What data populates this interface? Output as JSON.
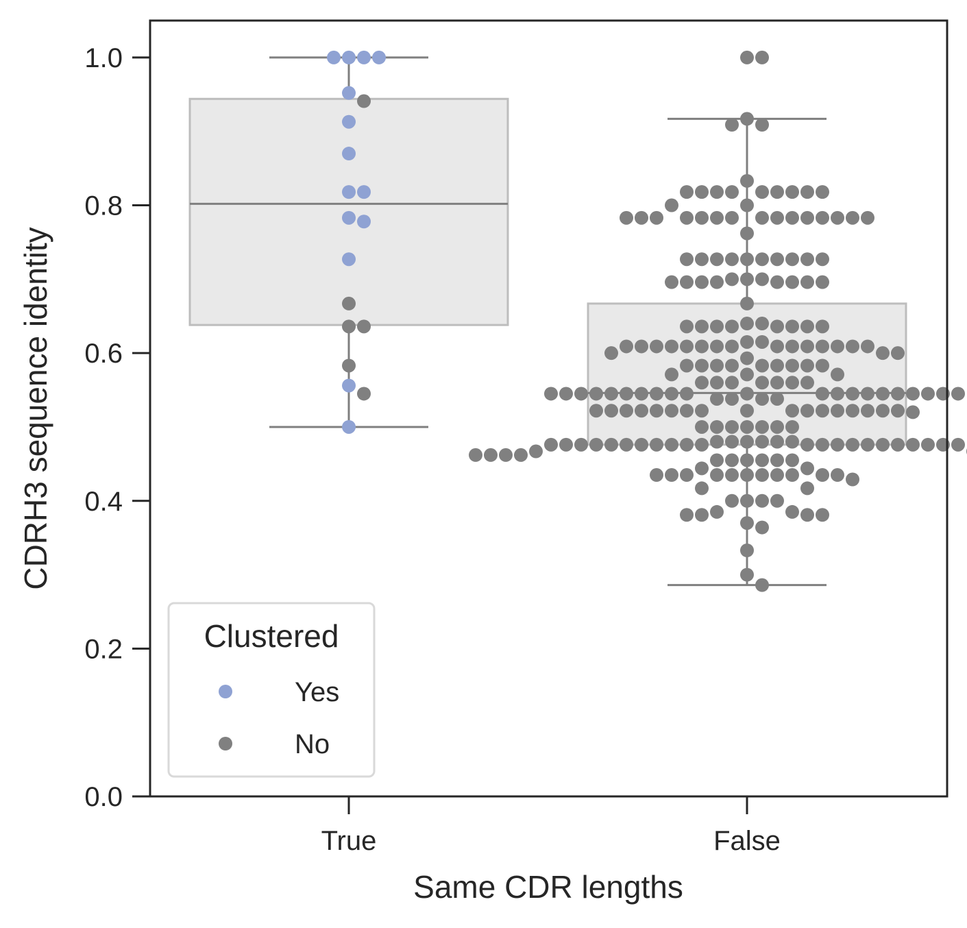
{
  "chart_data": {
    "type": "box-swarm",
    "xlabel": "Same CDR lengths",
    "ylabel": "CDRH3 sequence identity",
    "ylim": [
      0.0,
      1.05
    ],
    "yticks": [
      0.0,
      0.2,
      0.4,
      0.6,
      0.8,
      1.0
    ],
    "ytick_labels": [
      "0.0",
      "0.2",
      "0.4",
      "0.6",
      "0.8",
      "1.0"
    ],
    "categories": [
      "True",
      "False"
    ],
    "legend": {
      "title": "Clustered",
      "placement": "lower-left",
      "entries": [
        {
          "label": "Yes",
          "color": "#8fa2d3"
        },
        {
          "label": "No",
          "color": "#808080"
        }
      ]
    },
    "colors": {
      "box_fill": "#e9e9e9",
      "box_edge": "#bdbdbd",
      "whisker": "#7f7f7f",
      "axis": "#262626",
      "yes": "#8fa2d3",
      "no": "#808080"
    },
    "boxes": [
      {
        "category": "True",
        "q1": 0.638,
        "median": 0.802,
        "q3": 0.944,
        "whisker_low": 0.5,
        "whisker_high": 1.0
      },
      {
        "category": "False",
        "q1": 0.476,
        "median": 0.546,
        "q3": 0.667,
        "whisker_low": 0.286,
        "whisker_high": 0.917
      }
    ],
    "points": {
      "True": {
        "Yes": [
          1.0,
          1.0,
          1.0,
          1.0,
          0.952,
          0.913,
          0.87,
          0.818,
          0.818,
          0.783,
          0.778,
          0.727,
          0.556,
          0.5
        ],
        "No": [
          0.941,
          0.667,
          0.636,
          0.636,
          0.583,
          0.545
        ]
      },
      "False": {
        "Yes": [],
        "No": [
          1.0,
          1.0,
          0.917,
          0.909,
          0.909,
          0.833,
          0.818,
          0.818,
          0.818,
          0.818,
          0.818,
          0.818,
          0.818,
          0.818,
          0.818,
          0.8,
          0.8,
          0.783,
          0.783,
          0.783,
          0.783,
          0.783,
          0.783,
          0.783,
          0.783,
          0.783,
          0.783,
          0.783,
          0.783,
          0.783,
          0.783,
          0.783,
          0.762,
          0.727,
          0.727,
          0.727,
          0.727,
          0.727,
          0.727,
          0.727,
          0.727,
          0.727,
          0.727,
          0.7,
          0.7,
          0.7,
          0.696,
          0.696,
          0.696,
          0.696,
          0.696,
          0.696,
          0.696,
          0.696,
          0.667,
          0.64,
          0.64,
          0.636,
          0.636,
          0.636,
          0.636,
          0.636,
          0.636,
          0.636,
          0.636,
          0.615,
          0.615,
          0.609,
          0.609,
          0.609,
          0.609,
          0.609,
          0.609,
          0.609,
          0.609,
          0.609,
          0.609,
          0.609,
          0.609,
          0.609,
          0.609,
          0.609,
          0.6,
          0.6,
          0.6,
          0.593,
          0.583,
          0.583,
          0.583,
          0.583,
          0.583,
          0.583,
          0.583,
          0.583,
          0.583,
          0.571,
          0.571,
          0.571,
          0.56,
          0.56,
          0.56,
          0.56,
          0.56,
          0.56,
          0.56,
          0.545,
          0.545,
          0.545,
          0.545,
          0.545,
          0.545,
          0.545,
          0.545,
          0.545,
          0.545,
          0.545,
          0.545,
          0.545,
          0.545,
          0.545,
          0.545,
          0.545,
          0.545,
          0.545,
          0.545,
          0.545,
          0.538,
          0.538,
          0.538,
          0.538,
          0.522,
          0.522,
          0.522,
          0.522,
          0.522,
          0.522,
          0.522,
          0.522,
          0.522,
          0.522,
          0.522,
          0.522,
          0.522,
          0.522,
          0.522,
          0.522,
          0.522,
          0.52,
          0.5,
          0.5,
          0.5,
          0.5,
          0.5,
          0.5,
          0.5,
          0.48,
          0.48,
          0.48,
          0.48,
          0.48,
          0.48,
          0.476,
          0.476,
          0.476,
          0.476,
          0.476,
          0.476,
          0.476,
          0.476,
          0.476,
          0.476,
          0.476,
          0.476,
          0.476,
          0.476,
          0.476,
          0.476,
          0.476,
          0.476,
          0.476,
          0.476,
          0.476,
          0.476,
          0.467,
          0.467,
          0.462,
          0.462,
          0.462,
          0.462,
          0.462,
          0.462,
          0.462,
          0.455,
          0.455,
          0.455,
          0.455,
          0.455,
          0.455,
          0.444,
          0.444,
          0.435,
          0.435,
          0.435,
          0.435,
          0.435,
          0.435,
          0.435,
          0.435,
          0.435,
          0.435,
          0.435,
          0.429,
          0.417,
          0.417,
          0.4,
          0.4,
          0.4,
          0.4,
          0.385,
          0.385,
          0.381,
          0.381,
          0.381,
          0.381,
          0.37,
          0.364,
          0.333,
          0.3,
          0.286
        ]
      }
    }
  }
}
